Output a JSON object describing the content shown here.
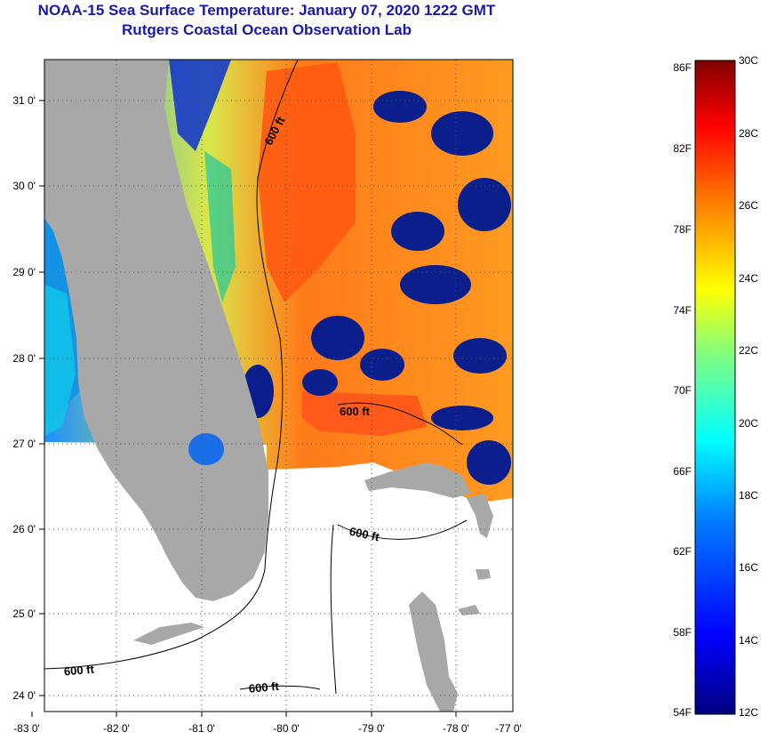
{
  "title": {
    "line1": "NOAA-15 Sea Surface Temperature:  January 07, 2020 1222 GMT",
    "line2": "Rutgers Coastal Ocean Observation Lab"
  },
  "map": {
    "lon_ticks": [
      "-83 0'",
      "-82 0'",
      "-81 0'",
      "-80 0'",
      "-79 0'",
      "-78 0'",
      "-77 0'"
    ],
    "lat_ticks": [
      "31 0'",
      "30 0'",
      "29 0'",
      "28 0'",
      "27 0'",
      "26 0'",
      "25 0'",
      "24 0'"
    ],
    "contour_labels": [
      "600 ft",
      "600 ft",
      "600 ft",
      "600 ft",
      "600 ft"
    ],
    "land_color": "#a8a8a8",
    "no_data_color": "#ffffff"
  },
  "colorbar": {
    "fahrenheit_labels": [
      "86F",
      "82F",
      "78F",
      "74F",
      "70F",
      "66F",
      "62F",
      "58F",
      "54F"
    ],
    "celsius_labels": [
      "30C",
      "28C",
      "26C",
      "24C",
      "22C",
      "20C",
      "18C",
      "16C",
      "14C",
      "12C"
    ],
    "colors": [
      "#000080",
      "#0000ff",
      "#0080ff",
      "#00ffff",
      "#80ff80",
      "#ffff00",
      "#ff8000",
      "#ff0000",
      "#800000"
    ]
  }
}
